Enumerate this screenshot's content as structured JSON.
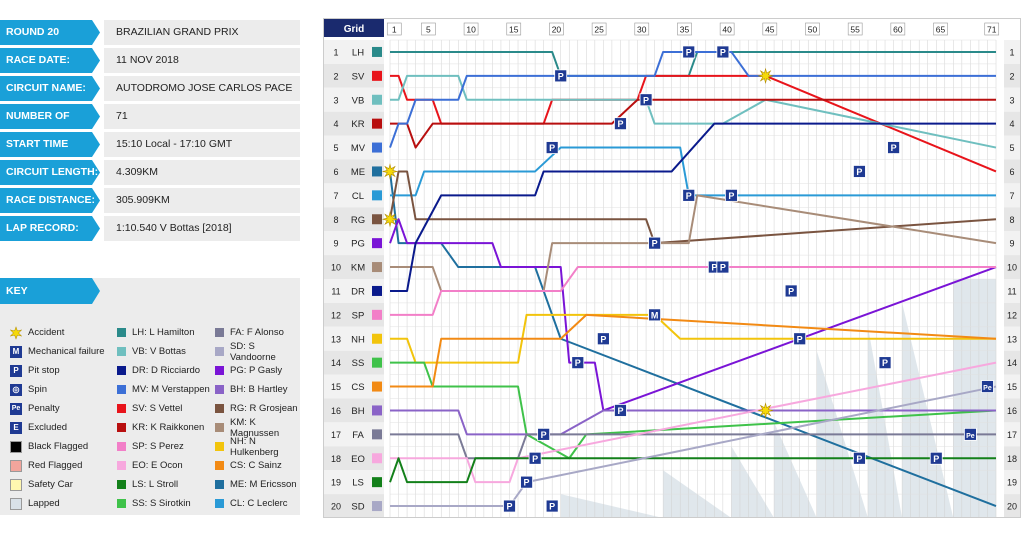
{
  "info": [
    {
      "label": "ROUND 20",
      "value": "BRAZILIAN GRAND PRIX"
    },
    {
      "label": "RACE DATE:",
      "value": "11 NOV 2018"
    },
    {
      "label": "CIRCUIT NAME:",
      "value": "AUTODROMO JOSE CARLOS PACE"
    },
    {
      "label": "NUMBER OF LAPS:",
      "value": "71"
    },
    {
      "label": "START TIME",
      "value": "15:10 Local - 17:10 GMT"
    },
    {
      "label": "CIRCUIT LENGTH:",
      "value": "4.309KM"
    },
    {
      "label": "RACE DISTANCE:",
      "value": "305.909KM"
    },
    {
      "label": "LAP RECORD:",
      "value": "1:10.540  V Bottas [2018]"
    }
  ],
  "key": {
    "title": "KEY",
    "events": [
      {
        "label": "Accident",
        "icon": "star"
      },
      {
        "label": "Mechanical failure",
        "icon": "M",
        "color": "#1f3a93"
      },
      {
        "label": "Pit stop",
        "icon": "P",
        "color": "#1f3a93"
      },
      {
        "label": "Spin",
        "icon": "spin",
        "color": "#1f3a93"
      },
      {
        "label": "Penalty",
        "icon": "Pe",
        "color": "#1f3a93"
      },
      {
        "label": "Excluded",
        "icon": "E",
        "color": "#1f3a93"
      },
      {
        "label": "Black Flagged",
        "icon": "box",
        "color": "#000000"
      },
      {
        "label": "Red Flagged",
        "icon": "box",
        "color": "#f2a59c"
      },
      {
        "label": "Safety Car",
        "icon": "box",
        "color": "#fff7b0"
      },
      {
        "label": "Lapped",
        "icon": "box",
        "color": "#d9e1e8"
      }
    ],
    "drivers_col1": [
      {
        "code": "LH",
        "label": "LH: L Hamilton",
        "color": "#2a8a8a"
      },
      {
        "code": "VB",
        "label": "VB: V Bottas",
        "color": "#6fbfbf"
      },
      {
        "code": "DR",
        "label": "DR: D Ricciardo",
        "color": "#0a1a8c"
      },
      {
        "code": "MV",
        "label": "MV: M Verstappen",
        "color": "#3c6fd6"
      },
      {
        "code": "SV",
        "label": "SV: S Vettel",
        "color": "#e8141b"
      },
      {
        "code": "KR",
        "label": "KR: K Raikkonen",
        "color": "#b80f0f"
      },
      {
        "code": "SP",
        "label": "SP: S Perez",
        "color": "#f27fc8"
      },
      {
        "code": "EO",
        "label": "EO: E Ocon",
        "color": "#f7a8de"
      },
      {
        "code": "LS",
        "label": "LS: L Stroll",
        "color": "#13801a"
      },
      {
        "code": "SS",
        "label": "SS: S Sirotkin",
        "color": "#3fc24a"
      }
    ],
    "drivers_col2": [
      {
        "code": "FA",
        "label": "FA: F Alonso",
        "color": "#7a7a96"
      },
      {
        "code": "SD",
        "label": "SD: S Vandoorne",
        "color": "#a8a8c6"
      },
      {
        "code": "PG",
        "label": "PG: P Gasly",
        "color": "#7a14d6"
      },
      {
        "code": "BH",
        "label": "BH: B Hartley",
        "color": "#8a63c7"
      },
      {
        "code": "RG",
        "label": "RG: R Grosjean",
        "color": "#7a5440"
      },
      {
        "code": "KM",
        "label": "KM: K Magnussen",
        "color": "#a88c78"
      },
      {
        "code": "NH",
        "label": "NH: N Hulkenberg",
        "color": "#f2c40c"
      },
      {
        "code": "CS",
        "label": "CS: C Sainz",
        "color": "#f28a14"
      },
      {
        "code": "ME",
        "label": "ME: M Ericsson",
        "color": "#1f6f9e"
      },
      {
        "code": "CL",
        "label": "CL: C Leclerc",
        "color": "#2a9ad6"
      }
    ]
  },
  "chart_data": {
    "type": "line",
    "title": "",
    "header_label": "Grid",
    "total_laps": 71,
    "x_ticks": [
      1,
      5,
      10,
      15,
      20,
      25,
      30,
      35,
      40,
      45,
      50,
      55,
      60,
      65,
      71
    ],
    "positions": [
      1,
      2,
      3,
      4,
      5,
      6,
      7,
      8,
      9,
      10,
      11,
      12,
      13,
      14,
      15,
      16,
      17,
      18,
      19,
      20
    ],
    "grid": [
      "LH",
      "SV",
      "VB",
      "KR",
      "MV",
      "ME",
      "CL",
      "RG",
      "PG",
      "KM",
      "DR",
      "SP",
      "NH",
      "SS",
      "CS",
      "BH",
      "FA",
      "EO",
      "LS",
      "SD"
    ],
    "series": [
      {
        "name": "LH",
        "color": "#2a8a8a",
        "points": [
          [
            0,
            1
          ],
          [
            19,
            1
          ],
          [
            20,
            2
          ],
          [
            35,
            2
          ],
          [
            36,
            1
          ],
          [
            71,
            1
          ]
        ]
      },
      {
        "name": "SV",
        "color": "#e8141b",
        "points": [
          [
            0,
            2
          ],
          [
            1,
            2
          ],
          [
            2,
            3
          ],
          [
            5,
            3
          ],
          [
            6,
            4
          ],
          [
            18,
            4
          ],
          [
            19,
            3
          ],
          [
            29,
            3
          ],
          [
            30,
            2
          ],
          [
            44,
            2
          ],
          [
            71,
            6
          ]
        ]
      },
      {
        "name": "VB",
        "color": "#6fbfbf",
        "points": [
          [
            0,
            3
          ],
          [
            1,
            3
          ],
          [
            2,
            2
          ],
          [
            3,
            2
          ],
          [
            4,
            2
          ],
          [
            8,
            2
          ],
          [
            9,
            3
          ],
          [
            19,
            3
          ],
          [
            20,
            3
          ],
          [
            30,
            3
          ],
          [
            31,
            4
          ],
          [
            39,
            4
          ],
          [
            44,
            3
          ],
          [
            71,
            5
          ]
        ]
      },
      {
        "name": "KR",
        "color": "#b80f0f",
        "points": [
          [
            0,
            4
          ],
          [
            2,
            4
          ],
          [
            3,
            5
          ],
          [
            5,
            4
          ],
          [
            26,
            4
          ],
          [
            29,
            3
          ],
          [
            44,
            3
          ],
          [
            71,
            3
          ]
        ]
      },
      {
        "name": "MV",
        "color": "#3c6fd6",
        "points": [
          [
            0,
            5
          ],
          [
            1,
            4
          ],
          [
            2,
            4
          ],
          [
            3,
            3
          ],
          [
            4,
            3
          ],
          [
            7,
            3
          ],
          [
            8,
            3
          ],
          [
            9,
            2
          ],
          [
            20,
            2
          ],
          [
            31,
            2
          ],
          [
            32,
            1
          ],
          [
            40,
            1
          ],
          [
            42,
            2
          ],
          [
            44,
            2
          ],
          [
            71,
            2
          ]
        ]
      },
      {
        "name": "ME",
        "color": "#1f6f9e",
        "points": [
          [
            0,
            6
          ],
          [
            1,
            9
          ],
          [
            6,
            9
          ],
          [
            8,
            10
          ],
          [
            17,
            10
          ],
          [
            20,
            13
          ],
          [
            71,
            20
          ]
        ]
      },
      {
        "name": "CL",
        "color": "#2a9ad6",
        "points": [
          [
            0,
            7
          ],
          [
            3,
            7
          ],
          [
            4,
            6
          ],
          [
            17,
            6
          ],
          [
            20,
            5
          ],
          [
            34,
            5
          ],
          [
            35,
            7
          ],
          [
            71,
            7
          ]
        ]
      },
      {
        "name": "RG",
        "color": "#7a5440",
        "points": [
          [
            0,
            8
          ],
          [
            1,
            6
          ],
          [
            2,
            6
          ],
          [
            3,
            8
          ],
          [
            30,
            8
          ],
          [
            31,
            9
          ],
          [
            71,
            8
          ]
        ]
      },
      {
        "name": "PG",
        "color": "#7a14d6",
        "points": [
          [
            0,
            9
          ],
          [
            1,
            8
          ],
          [
            2,
            9
          ],
          [
            12,
            9
          ],
          [
            13,
            10
          ],
          [
            20,
            10
          ],
          [
            21,
            14
          ],
          [
            24,
            14
          ],
          [
            25,
            16
          ],
          [
            71,
            10
          ]
        ]
      },
      {
        "name": "KM",
        "color": "#a88c78",
        "points": [
          [
            0,
            10
          ],
          [
            5,
            10
          ],
          [
            6,
            11
          ],
          [
            18,
            11
          ],
          [
            19,
            9
          ],
          [
            35,
            9
          ],
          [
            36,
            7
          ],
          [
            71,
            9
          ]
        ]
      },
      {
        "name": "DR",
        "color": "#0a1a8c",
        "points": [
          [
            0,
            11
          ],
          [
            2,
            11
          ],
          [
            3,
            9
          ],
          [
            6,
            7
          ],
          [
            17,
            7
          ],
          [
            18,
            6
          ],
          [
            33,
            6
          ],
          [
            38,
            4
          ],
          [
            71,
            4
          ]
        ]
      },
      {
        "name": "SP",
        "color": "#f27fc8",
        "points": [
          [
            0,
            12
          ],
          [
            5,
            12
          ],
          [
            6,
            11
          ],
          [
            20,
            11
          ],
          [
            22,
            10
          ],
          [
            71,
            10
          ]
        ]
      },
      {
        "name": "NH",
        "color": "#f2c40c",
        "points": [
          [
            0,
            13
          ],
          [
            2,
            13
          ],
          [
            3,
            14
          ],
          [
            15,
            14
          ],
          [
            16,
            12
          ],
          [
            31,
            12
          ],
          [
            34,
            13
          ],
          [
            71,
            13
          ]
        ]
      },
      {
        "name": "SS",
        "color": "#3fc24a",
        "points": [
          [
            0,
            14
          ],
          [
            4,
            14
          ],
          [
            5,
            15
          ],
          [
            15,
            15
          ],
          [
            16,
            17
          ],
          [
            21,
            18
          ],
          [
            23,
            17
          ],
          [
            71,
            16
          ]
        ]
      },
      {
        "name": "CS",
        "color": "#f28a14",
        "points": [
          [
            0,
            15
          ],
          [
            5,
            15
          ],
          [
            6,
            13
          ],
          [
            20,
            13
          ],
          [
            23,
            12
          ],
          [
            71,
            13
          ]
        ]
      },
      {
        "name": "BH",
        "color": "#8a63c7",
        "points": [
          [
            0,
            16
          ],
          [
            8,
            16
          ],
          [
            9,
            17
          ],
          [
            20,
            17
          ],
          [
            25,
            16
          ],
          [
            71,
            16
          ]
        ]
      },
      {
        "name": "FA",
        "color": "#7a7a96",
        "points": [
          [
            0,
            17
          ],
          [
            8,
            17
          ],
          [
            9,
            18
          ],
          [
            15,
            18
          ],
          [
            16,
            17
          ],
          [
            71,
            17
          ]
        ]
      },
      {
        "name": "EO",
        "color": "#f7a8de",
        "points": [
          [
            0,
            18
          ],
          [
            9,
            18
          ],
          [
            10,
            19
          ],
          [
            14,
            19
          ],
          [
            15,
            18
          ],
          [
            71,
            14
          ]
        ]
      },
      {
        "name": "LS",
        "color": "#13801a",
        "points": [
          [
            0,
            19
          ],
          [
            1,
            18
          ],
          [
            2,
            19
          ],
          [
            9,
            19
          ],
          [
            10,
            18
          ],
          [
            71,
            18
          ]
        ]
      },
      {
        "name": "SD",
        "color": "#a8a8c6",
        "points": [
          [
            0,
            20
          ],
          [
            14,
            20
          ],
          [
            16,
            19
          ],
          [
            71,
            15
          ]
        ]
      }
    ],
    "events": [
      {
        "type": "accident",
        "lap": 44,
        "position": 2
      },
      {
        "type": "accident",
        "lap": 0,
        "position": 6
      },
      {
        "type": "accident",
        "lap": 0,
        "position": 8
      },
      {
        "type": "accident",
        "lap": 44,
        "position": 16
      },
      {
        "type": "pit",
        "lap": 35,
        "position": 1
      },
      {
        "type": "pit",
        "lap": 39,
        "position": 1
      },
      {
        "type": "pit",
        "lap": 20,
        "position": 2
      },
      {
        "type": "pit",
        "lap": 30,
        "position": 3
      },
      {
        "type": "pit",
        "lap": 27,
        "position": 4
      },
      {
        "type": "pit",
        "lap": 19,
        "position": 5
      },
      {
        "type": "pit",
        "lap": 59,
        "position": 5
      },
      {
        "type": "pit",
        "lap": 55,
        "position": 6
      },
      {
        "type": "pit",
        "lap": 35,
        "position": 7
      },
      {
        "type": "pit",
        "lap": 40,
        "position": 7
      },
      {
        "type": "pit",
        "lap": 31,
        "position": 9
      },
      {
        "type": "pit",
        "lap": 38,
        "position": 10
      },
      {
        "type": "pit",
        "lap": 39,
        "position": 10
      },
      {
        "type": "pit",
        "lap": 47,
        "position": 11
      },
      {
        "type": "pit",
        "lap": 31,
        "position": 12
      },
      {
        "type": "mechanical",
        "lap": 31,
        "position": 12
      },
      {
        "type": "pit",
        "lap": 25,
        "position": 13
      },
      {
        "type": "pit",
        "lap": 48,
        "position": 13
      },
      {
        "type": "pit",
        "lap": 22,
        "position": 14
      },
      {
        "type": "pit",
        "lap": 58,
        "position": 14
      },
      {
        "type": "penalty",
        "lap": 70,
        "position": 15
      },
      {
        "type": "pit",
        "lap": 27,
        "position": 16
      },
      {
        "type": "pit",
        "lap": 18,
        "position": 17
      },
      {
        "type": "penalty",
        "lap": 68,
        "position": 17
      },
      {
        "type": "pit",
        "lap": 17,
        "position": 18
      },
      {
        "type": "pit",
        "lap": 55,
        "position": 18
      },
      {
        "type": "pit",
        "lap": 64,
        "position": 18
      },
      {
        "type": "pit",
        "lap": 16,
        "position": 19
      },
      {
        "type": "pit",
        "lap": 14,
        "position": 20
      },
      {
        "type": "mechanical",
        "lap": 19,
        "position": 20
      },
      {
        "type": "pit",
        "lap": 19,
        "position": 20
      }
    ],
    "lapped_region": "lower-right",
    "grid_lines": true
  }
}
